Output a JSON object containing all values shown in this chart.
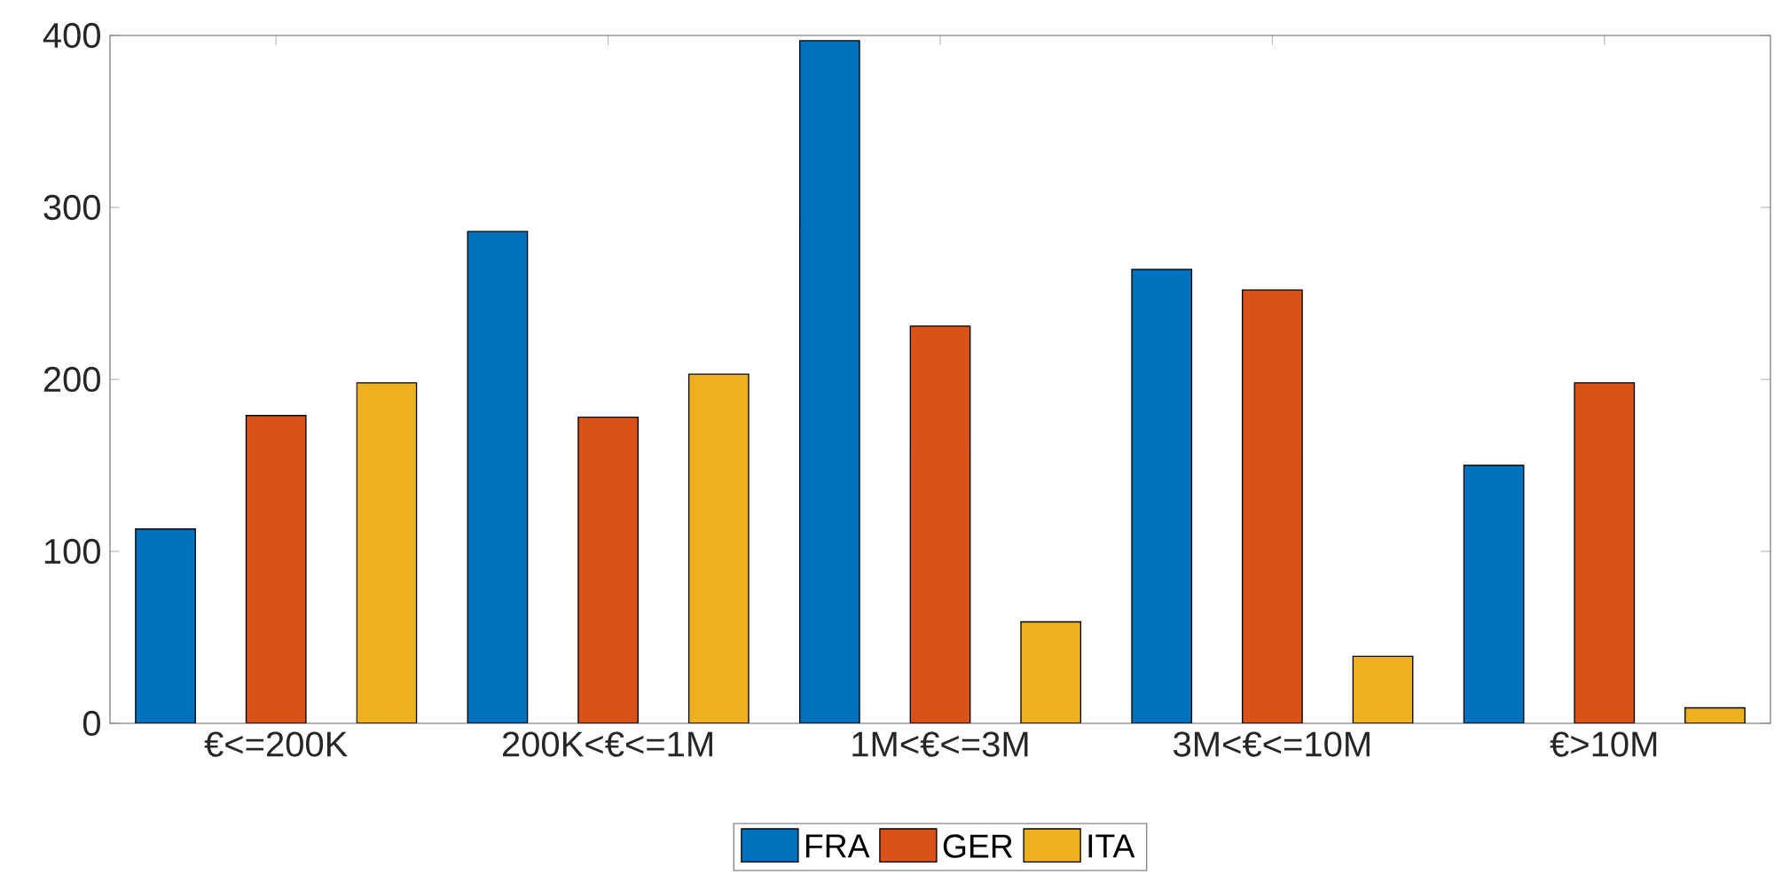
{
  "chart_data": {
    "type": "bar",
    "categories": [
      "€<=200K",
      "200K<€<=1M",
      "1M<€<=3M",
      "3M<€<=10M",
      "€>10M"
    ],
    "series": [
      {
        "name": "FRA",
        "color": "#0072bd",
        "values": [
          113,
          286,
          397,
          264,
          150
        ]
      },
      {
        "name": "GER",
        "color": "#d95319",
        "values": [
          179,
          178,
          231,
          252,
          198
        ]
      },
      {
        "name": "ITA",
        "color": "#edb120",
        "values": [
          198,
          203,
          59,
          39,
          9
        ]
      }
    ],
    "ylim": [
      0,
      400
    ],
    "yticks": [
      0,
      100,
      200,
      300,
      400
    ],
    "legend": "bottom"
  }
}
